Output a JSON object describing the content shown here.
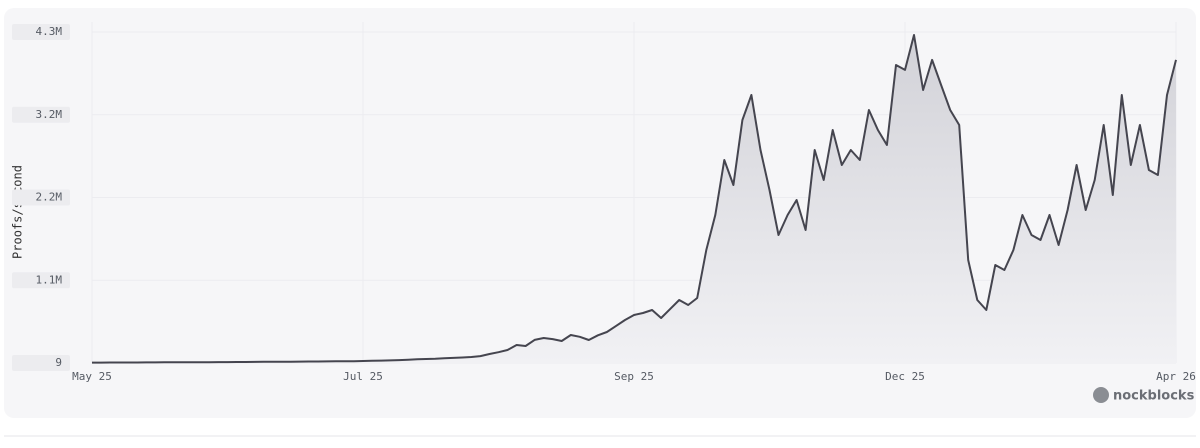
{
  "chart_data": {
    "type": "area",
    "y_label": "Proofs/second",
    "watermark": "nockblocks",
    "color": "#45454f",
    "grid": true,
    "categories": [
      "May 25",
      null,
      null,
      null,
      null,
      null,
      null,
      null,
      null,
      null,
      null,
      null,
      null,
      null,
      null,
      null,
      null,
      null,
      null,
      null,
      null,
      null,
      null,
      null,
      null,
      null,
      null,
      null,
      null,
      null,
      "Jul 25",
      null,
      null,
      null,
      null,
      null,
      null,
      null,
      null,
      null,
      null,
      null,
      null,
      null,
      null,
      null,
      null,
      null,
      null,
      null,
      null,
      null,
      null,
      null,
      null,
      null,
      null,
      null,
      null,
      null,
      "Sep 25",
      null,
      null,
      null,
      null,
      null,
      null,
      null,
      null,
      null,
      null,
      null,
      null,
      null,
      null,
      null,
      null,
      null,
      null,
      null,
      null,
      null,
      null,
      null,
      null,
      null,
      null,
      null,
      null,
      null,
      "Dec 25",
      null,
      null,
      null,
      null,
      null,
      null,
      null,
      null,
      null,
      null,
      null,
      null,
      null,
      null,
      null,
      null,
      null,
      null,
      null,
      null,
      null,
      null,
      null,
      null,
      null,
      null,
      null,
      null,
      null,
      "Apr 26"
    ],
    "values": [
      5000,
      5000,
      6000,
      6000,
      7000,
      7000,
      8000,
      8000,
      9000,
      9000,
      10000,
      10000,
      11000,
      11000,
      12000,
      12000,
      13000,
      13000,
      14000,
      15000,
      15000,
      16000,
      17000,
      18000,
      19000,
      20000,
      21000,
      22000,
      23000,
      24000,
      26000,
      28000,
      31000,
      34000,
      38000,
      43000,
      48000,
      52000,
      56000,
      62000,
      66000,
      72000,
      78000,
      90000,
      117000,
      140000,
      169000,
      234000,
      221000,
      300000,
      325000,
      310000,
      286000,
      364000,
      340000,
      299000,
      360000,
      403000,
      480000,
      559000,
      624000,
      650000,
      689000,
      585000,
      700000,
      819000,
      754000,
      845000,
      1468000,
      1923000,
      2637000,
      2312000,
      3157000,
      3482000,
      2767000,
      2247000,
      1663000,
      1923000,
      2118000,
      1728000,
      2767000,
      2377000,
      3027000,
      2572000,
      2767000,
      2637000,
      3287000,
      3027000,
      2832000,
      3871000,
      3807000,
      4261000,
      3547000,
      3937000,
      3612000,
      3287000,
      3092000,
      1338000,
      819000,
      689000,
      1273000,
      1208000,
      1468000,
      1923000,
      1663000,
      1598000,
      1923000,
      1533000,
      1988000,
      2572000,
      1988000,
      2377000,
      3092000,
      2182000,
      3482000,
      2572000,
      3092000,
      2507000,
      2442000,
      3482000,
      3937000
    ],
    "ylim": [
      9,
      4300000
    ],
    "yticks": [
      9,
      {
        "value": 1075000,
        "label": "1.1M"
      },
      {
        "value": 2150000,
        "label": "2.2M"
      },
      {
        "value": 3225000,
        "label": "3.2M"
      },
      {
        "value": 4300000,
        "label": "4.3M"
      }
    ]
  }
}
